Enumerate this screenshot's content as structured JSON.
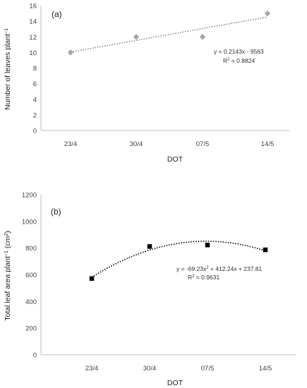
{
  "chart_data": [
    {
      "type": "scatter",
      "panel_label": "(a)",
      "categories": [
        "23/4",
        "30/4",
        "07/5",
        "14/5"
      ],
      "values": [
        10,
        12,
        12,
        15
      ],
      "xlabel": "DOT",
      "ylabel_main": "Number of leaves plant",
      "ylabel_sup": "−1",
      "ylim": [
        0,
        16
      ],
      "yticks": [
        0,
        2,
        4,
        6,
        8,
        10,
        12,
        14,
        16
      ],
      "marker": "diamond",
      "marker_color": "#a6a6a6",
      "trendline": {
        "type": "linear",
        "start": 10.05,
        "end": 14.55,
        "equation": "y = 0.2143x - 9563",
        "r2_prefix": "R",
        "r2_sup": "2",
        "r2_value": " = 0.8824"
      }
    },
    {
      "type": "scatter",
      "panel_label": "(b)",
      "categories": [
        "23/4",
        "30/4",
        "07/5",
        "14/5"
      ],
      "values": [
        572,
        812,
        823,
        787
      ],
      "xlabel": "DOT",
      "ylabel_main": "Total leaf area plant",
      "ylabel_sup": "−1",
      "ylabel_unit": " (cm",
      "ylabel_unit_sup": "2",
      "ylabel_end": ")",
      "ylim": [
        0,
        1200
      ],
      "yticks": [
        0,
        200,
        400,
        600,
        800,
        1000,
        1200
      ],
      "marker": "square",
      "marker_color": "#000000",
      "trendline": {
        "type": "polynomial",
        "coefficients": [
          -69.23,
          412.24,
          237.81
        ],
        "equation_pre": "y = -69.23x",
        "equation_sup": "2",
        "equation_post": " + 412.24x + 237.81",
        "r2_prefix": "R",
        "r2_sup": "2",
        "r2_value": " = 0.9631"
      }
    }
  ]
}
